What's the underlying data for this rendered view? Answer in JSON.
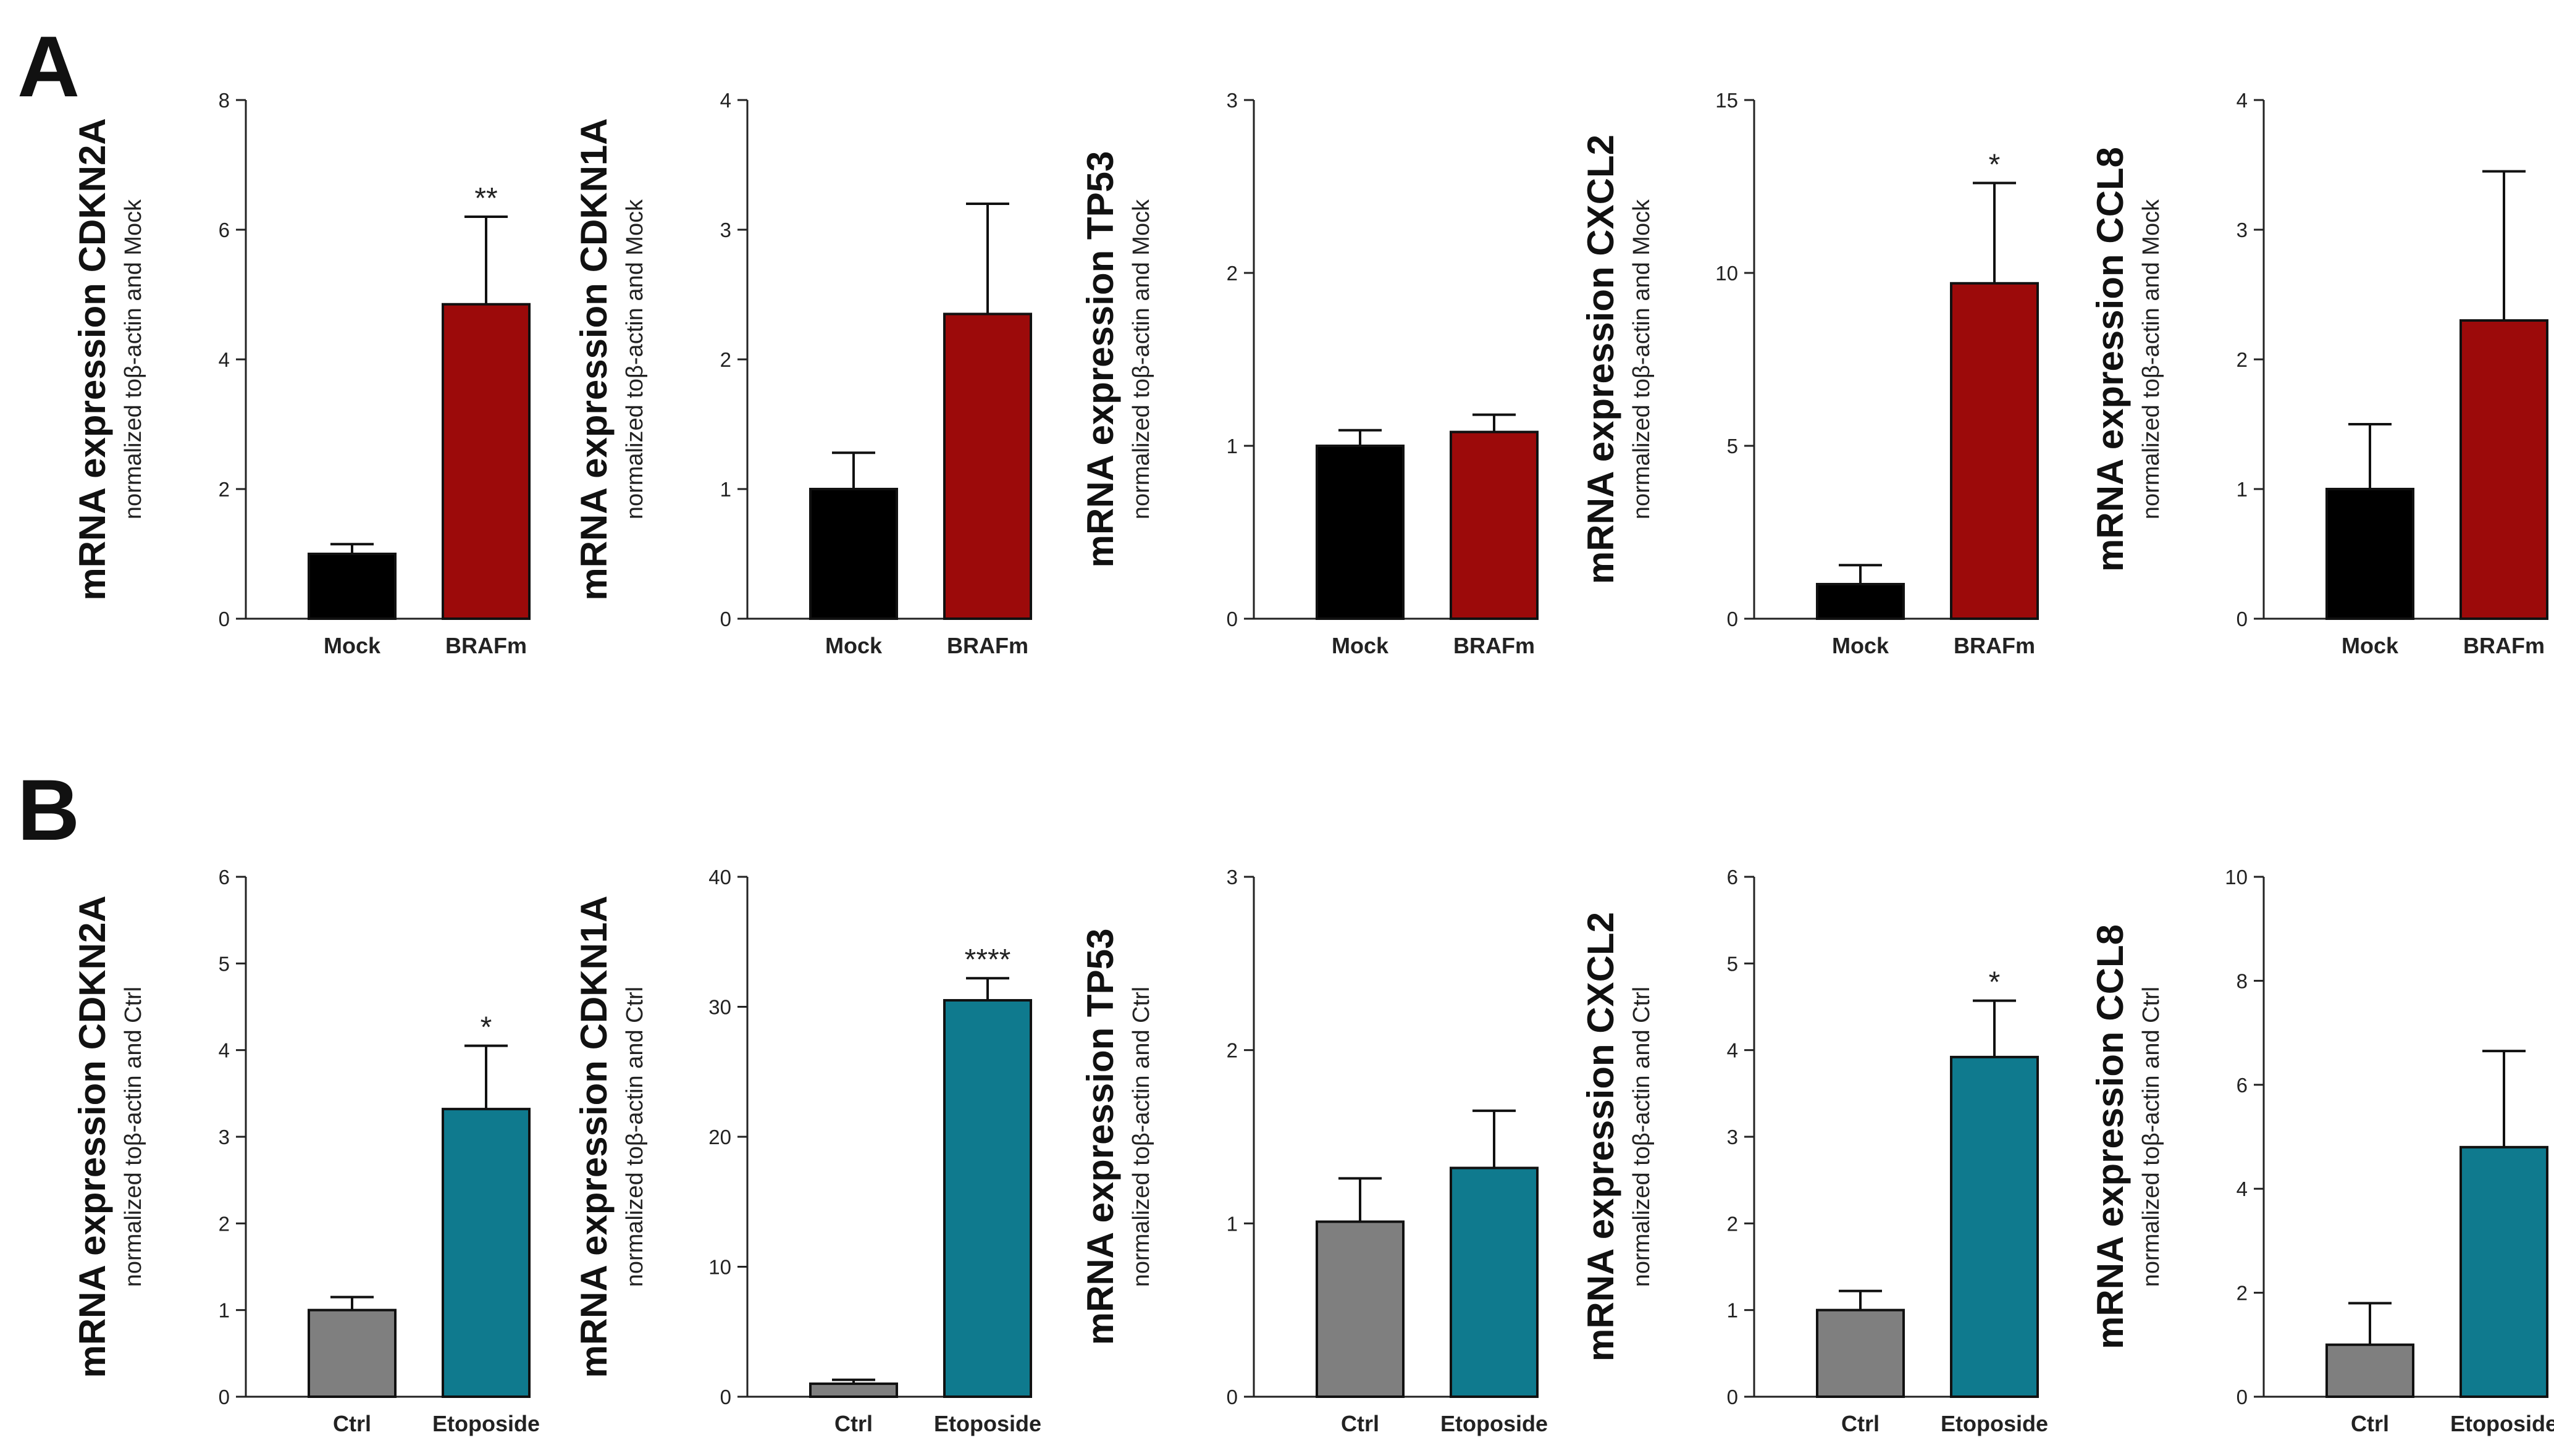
{
  "panels": [
    {
      "letter": "A"
    },
    {
      "letter": "B"
    }
  ],
  "chart_data": [
    {
      "type": "bar",
      "panel": "A",
      "title": "",
      "ylabel": "mRNA expression CDKN2A",
      "ysublabel": "normalized toβ-actin and Mock",
      "xlabel": "",
      "categories": [
        "Mock",
        "BRAFm"
      ],
      "values": [
        1.0,
        4.85
      ],
      "errors": [
        0.15,
        1.35
      ],
      "colors": [
        "#000000",
        "#9c0a0a"
      ],
      "significance": [
        "",
        "**"
      ],
      "ylim": [
        0,
        8
      ],
      "yticks": [
        "0",
        "2",
        "4",
        "6",
        "8"
      ]
    },
    {
      "type": "bar",
      "panel": "A",
      "title": "",
      "ylabel": "mRNA expression CDKN1A",
      "ysublabel": "normalized toβ-actin and Mock",
      "xlabel": "",
      "categories": [
        "Mock",
        "BRAFm"
      ],
      "values": [
        1.0,
        2.35
      ],
      "errors": [
        0.28,
        0.85
      ],
      "colors": [
        "#000000",
        "#9c0a0a"
      ],
      "significance": [
        "",
        ""
      ],
      "ylim": [
        0,
        4
      ],
      "yticks": [
        "0",
        "1",
        "2",
        "3",
        "4"
      ]
    },
    {
      "type": "bar",
      "panel": "A",
      "title": "",
      "ylabel": "mRNA expression TP53",
      "ysublabel": "normalized toβ-actin and Mock",
      "xlabel": "",
      "categories": [
        "Mock",
        "BRAFm"
      ],
      "values": [
        1.0,
        1.08
      ],
      "errors": [
        0.09,
        0.1
      ],
      "colors": [
        "#000000",
        "#9c0a0a"
      ],
      "significance": [
        "",
        ""
      ],
      "ylim": [
        0,
        3
      ],
      "yticks": [
        "0",
        "1",
        "2",
        "3"
      ]
    },
    {
      "type": "bar",
      "panel": "A",
      "title": "",
      "ylabel": "mRNA expression CXCL2",
      "ysublabel": "normalized toβ-actin and Mock",
      "xlabel": "",
      "categories": [
        "Mock",
        "BRAFm"
      ],
      "values": [
        1.0,
        9.7
      ],
      "errors": [
        0.55,
        2.9
      ],
      "colors": [
        "#000000",
        "#9c0a0a"
      ],
      "significance": [
        "",
        "*"
      ],
      "ylim": [
        0,
        15
      ],
      "yticks": [
        "0",
        "5",
        "10",
        "15"
      ]
    },
    {
      "type": "bar",
      "panel": "A",
      "title": "",
      "ylabel": "mRNA expression CCL8",
      "ysublabel": "normalized toβ-actin and Mock",
      "xlabel": "",
      "categories": [
        "Mock",
        "BRAFm"
      ],
      "values": [
        1.0,
        2.3
      ],
      "errors": [
        0.5,
        1.15
      ],
      "colors": [
        "#000000",
        "#9c0a0a"
      ],
      "significance": [
        "",
        ""
      ],
      "ylim": [
        0,
        4
      ],
      "yticks": [
        "0",
        "1",
        "2",
        "3",
        "4"
      ]
    },
    {
      "type": "bar",
      "panel": "B",
      "title": "",
      "ylabel": "mRNA expression CDKN2A",
      "ysublabel": "normalized toβ-actin and Ctrl",
      "xlabel": "",
      "categories": [
        "Ctrl",
        "Etoposide"
      ],
      "values": [
        1.0,
        3.32
      ],
      "errors": [
        0.15,
        0.73
      ],
      "colors": [
        "#7f7f7f",
        "#0f7a8e"
      ],
      "significance": [
        "",
        "*"
      ],
      "ylim": [
        0,
        6
      ],
      "yticks": [
        "0",
        "1",
        "2",
        "3",
        "4",
        "5",
        "6"
      ]
    },
    {
      "type": "bar",
      "panel": "B",
      "title": "",
      "ylabel": "mRNA expression CDKN1A",
      "ysublabel": "normalized toβ-actin and Ctrl",
      "xlabel": "",
      "categories": [
        "Ctrl",
        "Etoposide"
      ],
      "values": [
        1.0,
        30.5
      ],
      "errors": [
        0.3,
        1.7
      ],
      "colors": [
        "#7f7f7f",
        "#0f7a8e"
      ],
      "significance": [
        "",
        "****"
      ],
      "ylim": [
        0,
        40
      ],
      "yticks": [
        "0",
        "10",
        "20",
        "30",
        "40"
      ]
    },
    {
      "type": "bar",
      "panel": "B",
      "title": "",
      "ylabel": "mRNA expression TP53",
      "ysublabel": "normalized toβ-actin and Ctrl",
      "xlabel": "",
      "categories": [
        "Ctrl",
        "Etoposide"
      ],
      "values": [
        1.01,
        1.32
      ],
      "errors": [
        0.25,
        0.33
      ],
      "colors": [
        "#7f7f7f",
        "#0f7a8e"
      ],
      "significance": [
        "",
        ""
      ],
      "ylim": [
        0,
        3
      ],
      "yticks": [
        "0",
        "1",
        "2",
        "3"
      ]
    },
    {
      "type": "bar",
      "panel": "B",
      "title": "",
      "ylabel": "mRNA expression CXCL2",
      "ysublabel": "normalized toβ-actin and Ctrl",
      "xlabel": "",
      "categories": [
        "Ctrl",
        "Etoposide"
      ],
      "values": [
        1.0,
        3.92
      ],
      "errors": [
        0.22,
        0.65
      ],
      "colors": [
        "#7f7f7f",
        "#0f7a8e"
      ],
      "significance": [
        "",
        "*"
      ],
      "ylim": [
        0,
        6
      ],
      "yticks": [
        "0",
        "1",
        "2",
        "3",
        "4",
        "5",
        "6"
      ]
    },
    {
      "type": "bar",
      "panel": "B",
      "title": "",
      "ylabel": "mRNA expression CCL8",
      "ysublabel": "normalized toβ-actin and Ctrl",
      "xlabel": "",
      "categories": [
        "Ctrl",
        "Etoposide"
      ],
      "values": [
        1.0,
        4.8
      ],
      "errors": [
        0.8,
        1.85
      ],
      "colors": [
        "#7f7f7f",
        "#0f7a8e"
      ],
      "significance": [
        "",
        ""
      ],
      "ylim": [
        0,
        10
      ],
      "yticks": [
        "0",
        "2",
        "4",
        "6",
        "8",
        "10"
      ]
    }
  ]
}
